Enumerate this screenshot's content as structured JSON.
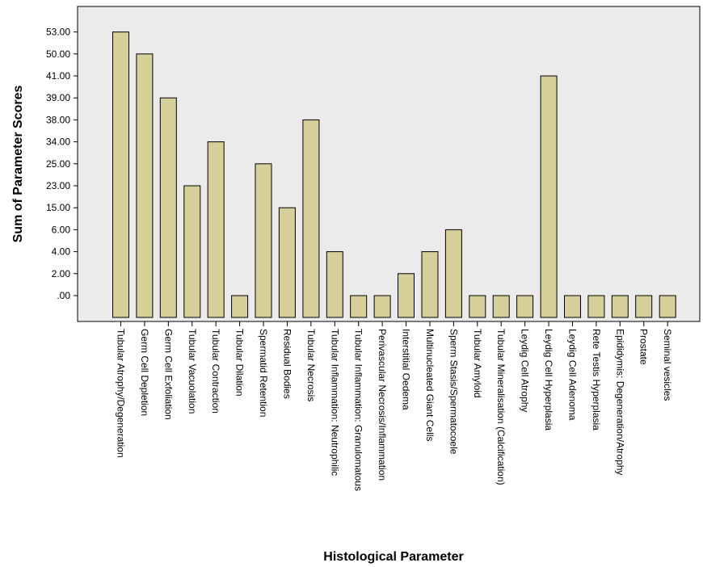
{
  "chart_data": {
    "type": "bar",
    "xlabel": "Histological Parameter",
    "ylabel": "Sum of Parameter Scores",
    "y_tick_labels": [
      ".00",
      "2.00",
      "4.00",
      "6.00",
      "15.00",
      "23.00",
      "25.00",
      "34.00",
      "38.00",
      "39.00",
      "41.00",
      "50.00",
      "53.00"
    ],
    "categories": [
      "Tubular Atrophy/Degeneration",
      "Germ Cell Depletion",
      "Germ Cell Exfoliation",
      "Tubular Vacuolation",
      "Tubular Contraction",
      "Tubular Dilation",
      "Spermatid Retention",
      "Residual Bodies",
      "Tubular Necrosis",
      "Tubular Inflammation: Neutrophilic",
      "Tubular Inflammation: Granulomatous",
      "Perivascular Necrosis/Inflammation",
      "Interstitial Oedema",
      "Multinucleated Giant Cells",
      "Sperm Stasis/Spermatocoele",
      "Tubular Amyloid",
      "Tubular Mineralisation (Calcification)",
      "Leydig Cell Atrophy",
      "Leydig Cell Hyperplasia",
      "Leydig Cell Adenoma",
      "Rete Testis Hyperplasia",
      "Epididymis: Degeneration/Atrophy",
      "Prostate",
      "Seminal vesicles"
    ],
    "values": [
      53,
      50,
      39,
      23,
      34,
      0,
      25,
      15,
      38,
      4,
      0,
      0,
      2,
      4,
      6,
      0,
      0,
      0,
      41,
      0,
      0,
      0,
      0,
      0
    ],
    "y_scale": "ordinal (ticks evenly spaced by distinct value)",
    "grid": false,
    "legend": "none",
    "colors": {
      "bar_fill": "#d6cf9a",
      "bar_stroke": "#000000",
      "plot_background": "#ebebeb",
      "axis": "#000000"
    }
  }
}
